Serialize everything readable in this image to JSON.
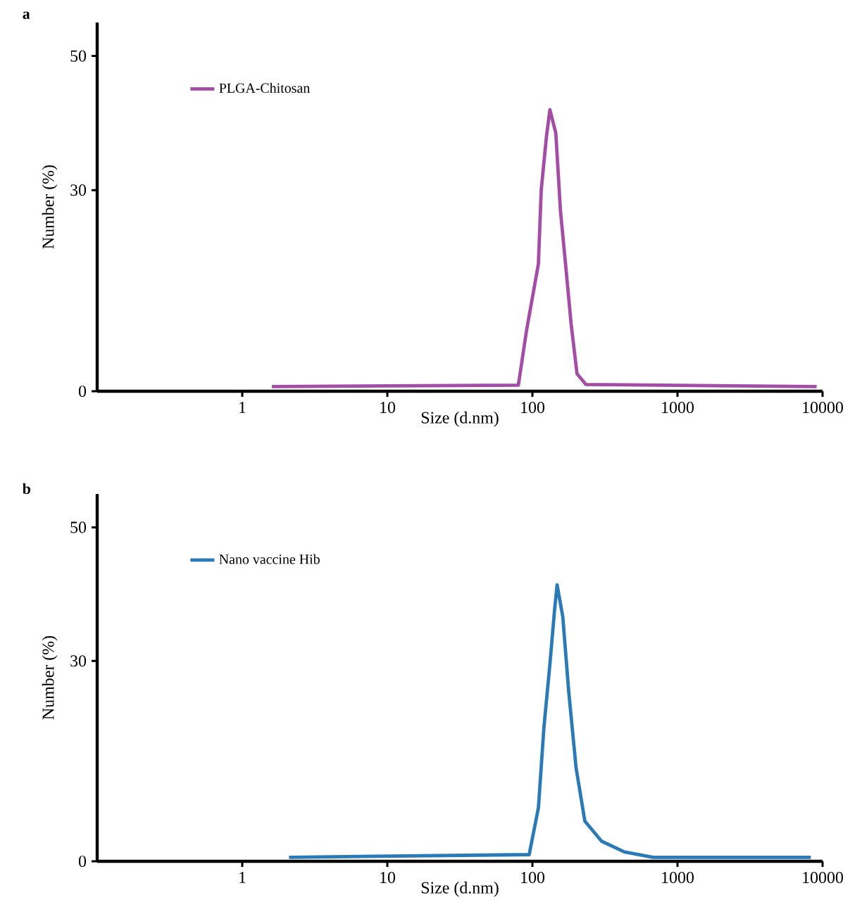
{
  "chart_data": [
    {
      "type": "line",
      "title": "a",
      "xlabel": "Size (d.nm)",
      "ylabel": "Number (%)",
      "log": "x",
      "xlim": [
        0.1,
        10000
      ],
      "xticks": [
        1,
        10,
        100,
        1000,
        10000
      ],
      "ylim": [
        0,
        55
      ],
      "yticks": [
        0,
        30,
        50
      ],
      "legend": "top left",
      "marker": "none",
      "line_style": "solid",
      "series": [
        {
          "name": "PLGA-Chitosan",
          "color": "#a44da6",
          "x": [
            1.6,
            80,
            91,
            110,
            115,
            125,
            132,
            145,
            156,
            170,
            185,
            203,
            234,
            9100
          ],
          "values": [
            0.7,
            0.9,
            9,
            19,
            30,
            38,
            42,
            38.5,
            27,
            18.5,
            10,
            2.6,
            1,
            0.7
          ]
        }
      ]
    },
    {
      "type": "line",
      "title": "b",
      "xlabel": "Size (d.nm)",
      "ylabel": "Number (%)",
      "log": "x",
      "xlim": [
        0.1,
        10000
      ],
      "xticks": [
        1,
        10,
        100,
        1000,
        10000
      ],
      "ylim": [
        0,
        55
      ],
      "yticks": [
        0,
        30,
        50
      ],
      "legend": "top left",
      "marker": "none",
      "line_style": "solid",
      "series": [
        {
          "name": "Nano vaccine Hib",
          "color": "#2a7ab8",
          "x": [
            2.1,
            95,
            110,
            120,
            132,
            142,
            148,
            162,
            178,
            200,
            230,
            300,
            430,
            680,
            8300
          ],
          "values": [
            0.6,
            1,
            8,
            20,
            29.5,
            37.5,
            41.4,
            36.6,
            25.4,
            14,
            6,
            3,
            1.4,
            0.6,
            0.6
          ]
        }
      ]
    }
  ]
}
